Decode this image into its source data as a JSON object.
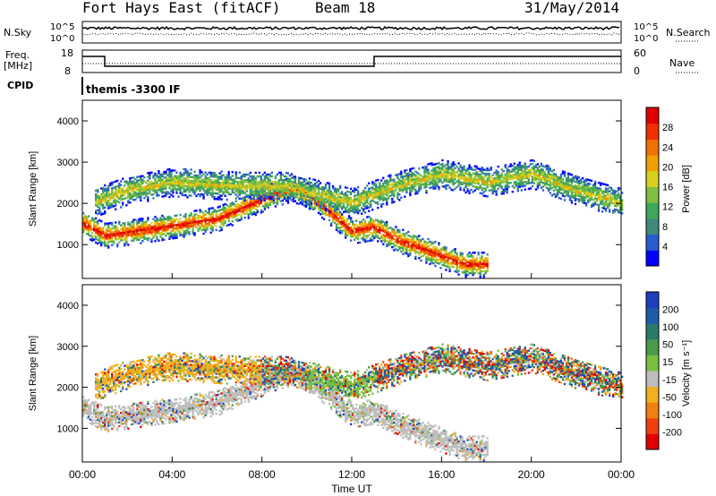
{
  "header": {
    "station": "Fort Hays East (fitACF)",
    "beam": "Beam 18",
    "date": "31/May/2014"
  },
  "top_panels": {
    "nsky_label": "N.Sky",
    "nsearch_label": "N.Search",
    "noise_ticks_left": [
      "10^5",
      "10^0"
    ],
    "noise_ticks_right": [
      "10^5",
      "10^0"
    ],
    "freq_label": "Freq.",
    "freq_unit": "[MHz]",
    "freq_ticks": [
      "18",
      "8"
    ],
    "nave_label": "Nave",
    "nave_ticks": [
      "60",
      "0"
    ],
    "cpid_label": "CPID",
    "cpid_text": "themis -3300 IF"
  },
  "chart_data": [
    {
      "type": "heatmap",
      "name": "power",
      "ylabel": "Slant Range [km]",
      "ylim": [
        180,
        4500
      ],
      "yticks": [
        1000,
        2000,
        3000,
        4000
      ],
      "xlim": [
        0,
        24
      ],
      "colorbar": {
        "label": "Power [dB]",
        "ticks": [
          4,
          8,
          12,
          16,
          20,
          24,
          28
        ],
        "colors": [
          "#0000ff",
          "#2a5cd0",
          "#3f8a7a",
          "#3ea85a",
          "#80c040",
          "#d8d020",
          "#f0a000",
          "#f07000",
          "#f03000",
          "#e00000"
        ]
      }
    },
    {
      "type": "heatmap",
      "name": "velocity",
      "ylabel": "Slant Range [km]",
      "ylim": [
        180,
        4500
      ],
      "yticks": [
        1000,
        2000,
        3000,
        4000
      ],
      "xlim": [
        0,
        24
      ],
      "colorbar": {
        "label": "Velocity [m s⁻¹]",
        "ticks": [
          "200",
          "100",
          "50",
          "15",
          "-15",
          "-50",
          "-100",
          "-200"
        ],
        "colors": [
          "#1f3fbf",
          "#1f5ca8",
          "#2a7a6a",
          "#4a9a4a",
          "#7ac040",
          "#bebebe",
          "#f0b020",
          "#f08010",
          "#f04010",
          "#e00000"
        ]
      },
      "xlabel": "Time UT",
      "xticks": [
        "00:00",
        "04:00",
        "08:00",
        "12:00",
        "16:00",
        "20:00",
        "00:00"
      ]
    }
  ],
  "colors": {
    "axis": "#000000",
    "ground_scatter": "#bebebe"
  }
}
